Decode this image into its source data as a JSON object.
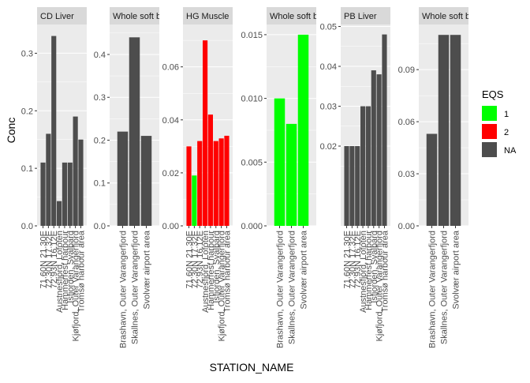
{
  "chart_data": {
    "type": "bar",
    "layout": "faceted",
    "xlabel": "STATION_NAME",
    "ylabel": "Conc",
    "grid": true,
    "legend": {
      "title": "EQS",
      "placement": "right",
      "entries": [
        {
          "label": "1",
          "color": "#00ff00"
        },
        {
          "label": "2",
          "color": "#ff0000"
        },
        {
          "label": "NA",
          "color": "#4d4d4d"
        }
      ]
    },
    "facets": [
      {
        "strip": "CD Liver",
        "ylim": [
          0,
          0.35
        ],
        "yticks": [
          0.0,
          0.1,
          0.2,
          0.3
        ],
        "ytick_labels": [
          "0.0",
          "0.1",
          "0.2",
          "0.3"
        ],
        "categories": [
          "71.60N 21.30E",
          "72.30N 17.32E",
          "72.93N 16.12E",
          "Austnesfjord, Lofoten",
          "Hammerfest harbour",
          "Isfjorden, Svalbard",
          "Kjøfjord, Outer Varangerfjord",
          "Tromsø harbour area"
        ],
        "values": [
          0.11,
          0.16,
          0.33,
          0.043,
          0.11,
          0.11,
          0.19,
          0.15
        ],
        "eqs": [
          "NA",
          "NA",
          "NA",
          "NA",
          "NA",
          "NA",
          "NA",
          "NA"
        ]
      },
      {
        "strip": "Whole soft b",
        "ylim": [
          0,
          0.47
        ],
        "yticks": [
          0.0,
          0.1,
          0.2,
          0.3,
          0.4
        ],
        "ytick_labels": [
          "0.0",
          "0.1",
          "0.2",
          "0.3",
          "0.4"
        ],
        "categories": [
          "Brashavn, Outer Varangerfjord",
          "Skallnes, Outer Varangerfjord",
          "Svolvær airport area"
        ],
        "values": [
          0.22,
          0.44,
          0.21
        ],
        "eqs": [
          "NA",
          "NA",
          "NA"
        ]
      },
      {
        "strip": "HG Muscle",
        "ylim": [
          0,
          0.076
        ],
        "yticks": [
          0.0,
          0.02,
          0.04,
          0.06
        ],
        "ytick_labels": [
          "0.00",
          "0.02",
          "0.04",
          "0.06"
        ],
        "categories": [
          "71.60N 21.30E",
          "72.30N 17.32E",
          "72.93N 16.12E",
          "Austnesfjord, Lofoten",
          "Hammerfest harbour",
          "Isfjorden, Svalbard",
          "Kjøfjord, Outer Varangerfjord",
          "Tromsø harbour area"
        ],
        "values": [
          0.03,
          0.019,
          0.032,
          0.07,
          0.042,
          0.032,
          0.033,
          0.034
        ],
        "eqs": [
          "2",
          "1",
          "2",
          "2",
          "2",
          "2",
          "2",
          "2"
        ]
      },
      {
        "strip": "Whole soft b",
        "ylim": [
          0,
          0.0158
        ],
        "yticks": [
          0.0,
          0.005,
          0.01,
          0.015
        ],
        "ytick_labels": [
          "0.000",
          "0.005",
          "0.010",
          "0.015"
        ],
        "categories": [
          "Brashavn, Outer Varangerfjord",
          "Skallnes, Outer Varangerfjord",
          "Svolvær airport area"
        ],
        "values": [
          0.01,
          0.008,
          0.015
        ],
        "eqs": [
          "1",
          "1",
          "1"
        ]
      },
      {
        "strip": "PB Liver",
        "ylim": [
          0,
          0.0505
        ],
        "yticks": [
          0.02,
          0.03,
          0.04,
          0.05
        ],
        "ytick_labels": [
          "0.02",
          "0.03",
          "0.04",
          "0.05"
        ],
        "categories": [
          "71.60N 21.30E",
          "72.30N 17.32E",
          "72.93N 16.12E",
          "Austnesfjord, Lofoten",
          "Hammerfest harbour",
          "Isfjorden, Svalbard",
          "Kjøfjord, Outer Varangerfjord",
          "Tromsø harbour area"
        ],
        "values": [
          0.02,
          0.02,
          0.02,
          0.03,
          0.03,
          0.039,
          0.038,
          0.048
        ],
        "eqs": [
          "NA",
          "NA",
          "NA",
          "NA",
          "NA",
          "NA",
          "NA",
          "NA"
        ]
      },
      {
        "strip": "Whole soft b",
        "ylim": [
          0,
          0.116
        ],
        "yticks": [
          0.0,
          0.03,
          0.06,
          0.09
        ],
        "ytick_labels": [
          "0.00",
          "0.03",
          "0.06",
          "0.09"
        ],
        "categories": [
          "Brashavn, Outer Varangerfjord",
          "Skallnes, Outer Varangerfjord",
          "Svolvær airport area"
        ],
        "values": [
          0.053,
          0.11,
          0.11
        ],
        "eqs": [
          "NA",
          "NA",
          "NA"
        ]
      }
    ]
  }
}
